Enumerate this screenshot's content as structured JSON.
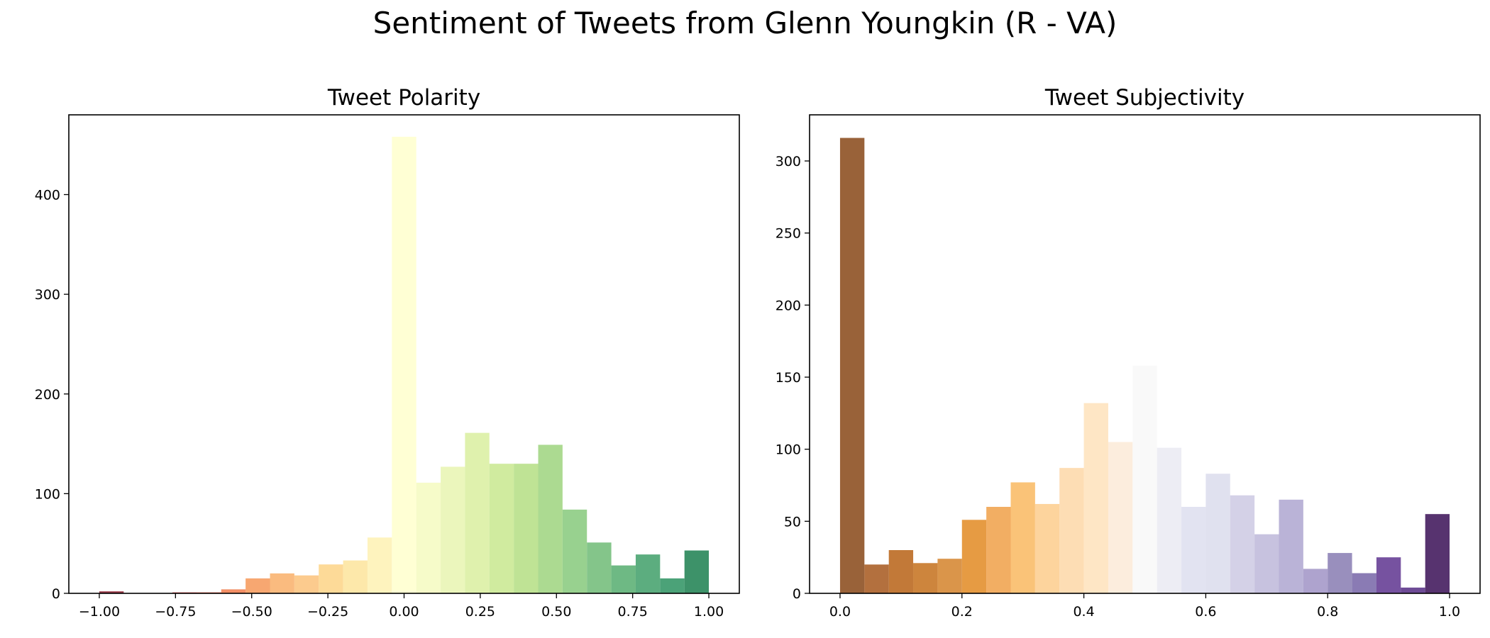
{
  "figure": {
    "title": "Sentiment of Tweets from Glenn Youngkin (R - VA)"
  },
  "chart_data": [
    {
      "type": "bar",
      "title": "Tweet Polarity",
      "xlabel": "",
      "ylabel": "",
      "xlim": [
        -1.1,
        1.1
      ],
      "ylim": [
        0,
        480
      ],
      "xticks": [
        -1.0,
        -0.75,
        -0.5,
        -0.25,
        0.0,
        0.25,
        0.5,
        0.75,
        1.0
      ],
      "xtick_labels": [
        "−1.00",
        "−0.75",
        "−0.50",
        "−0.25",
        "0.00",
        "0.25",
        "0.50",
        "0.75",
        "1.00"
      ],
      "yticks": [
        0,
        100,
        200,
        300,
        400
      ],
      "ytick_labels": [
        "0",
        "100",
        "200",
        "300",
        "400"
      ],
      "bin_edges": [
        -1.0,
        -0.92,
        -0.84,
        -0.76,
        -0.68,
        -0.6,
        -0.52,
        -0.44,
        -0.36,
        -0.28,
        -0.2,
        -0.12,
        -0.04,
        0.04,
        0.12,
        0.2,
        0.28,
        0.36,
        0.44,
        0.52,
        0.6,
        0.68,
        0.76,
        0.84,
        0.92,
        1.0
      ],
      "values": [
        2,
        0,
        0,
        1,
        1,
        4,
        15,
        20,
        18,
        29,
        33,
        56,
        458,
        111,
        127,
        161,
        130,
        130,
        149,
        84,
        51,
        28,
        39,
        15,
        43
      ],
      "colors": [
        "#8a1a2b",
        "#9e1f2f",
        "#b8283b",
        "#cf3d3e",
        "#e0553f",
        "#f07a4a",
        "#f69858",
        "#f9af69",
        "#fbc27a",
        "#fdd386",
        "#fde49b",
        "#fef1b3",
        "#ffffcc",
        "#f5fac0",
        "#e8f5b0",
        "#d9ef9f",
        "#c8e78e",
        "#b4de82",
        "#9dd37e",
        "#86c97b",
        "#6ebb75",
        "#55ad6e",
        "#3f9f68",
        "#2c9260",
        "#1b7f4f"
      ],
      "bar_opacity": 0.85,
      "grid": false,
      "legend": "none"
    },
    {
      "type": "bar",
      "title": "Tweet Subjectivity",
      "xlabel": "",
      "ylabel": "",
      "xlim": [
        -0.05,
        1.05
      ],
      "ylim": [
        0,
        332
      ],
      "xticks": [
        0.0,
        0.2,
        0.4,
        0.6,
        0.8,
        1.0
      ],
      "xtick_labels": [
        "0.0",
        "0.2",
        "0.4",
        "0.6",
        "0.8",
        "1.0"
      ],
      "yticks": [
        0,
        50,
        100,
        150,
        200,
        250,
        300
      ],
      "ytick_labels": [
        "0",
        "50",
        "100",
        "150",
        "200",
        "250",
        "300"
      ],
      "bin_edges": [
        0.0,
        0.04,
        0.08,
        0.12,
        0.16,
        0.2,
        0.24,
        0.28,
        0.32,
        0.36,
        0.4,
        0.44,
        0.48,
        0.52,
        0.56,
        0.6,
        0.64,
        0.68,
        0.72,
        0.76,
        0.8,
        0.84,
        0.88,
        0.92,
        0.96,
        1.0
      ],
      "values": [
        316,
        20,
        30,
        21,
        24,
        51,
        60,
        77,
        62,
        87,
        132,
        105,
        158,
        101,
        60,
        83,
        68,
        41,
        65,
        17,
        28,
        14,
        25,
        4,
        55
      ],
      "colors": [
        "#7f3b08",
        "#a04c0e",
        "#b35806",
        "#c0660d",
        "#d17a1d",
        "#e08214",
        "#ef9a3c",
        "#f9b456",
        "#fdc985",
        "#fdd5a1",
        "#fee0b6",
        "#fbe9d4",
        "#f7f7f7",
        "#e9e9f1",
        "#dbdcee",
        "#d8daeb",
        "#c9c6e1",
        "#b9b3d7",
        "#a9a0cd",
        "#9a8cc2",
        "#8073ac",
        "#6d5aa1",
        "#542788",
        "#4a1e7c",
        "#2d004b"
      ],
      "bar_opacity": 0.8,
      "grid": false,
      "legend": "none"
    }
  ]
}
